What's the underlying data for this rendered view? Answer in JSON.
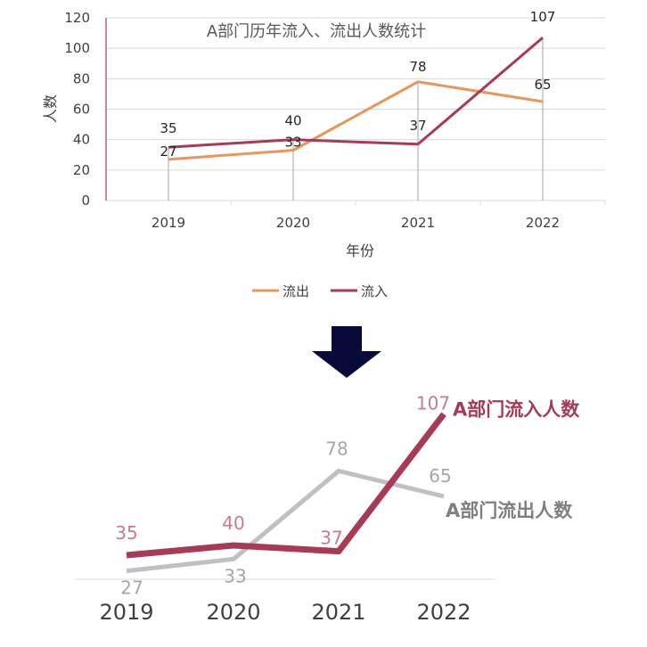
{
  "chart_data": [
    {
      "type": "line",
      "title": "A部门历年流入、流出人数统计",
      "xlabel": "年份",
      "ylabel": "人数",
      "categories": [
        "2019",
        "2020",
        "2021",
        "2022"
      ],
      "ylim": [
        0,
        120
      ],
      "yticks": [
        "0",
        "20",
        "40",
        "60",
        "80",
        "100",
        "120"
      ],
      "grid": true,
      "legend_position": "bottom",
      "series": [
        {
          "name": "流出",
          "values": [
            27,
            33,
            78,
            65
          ],
          "color": "#e8975a"
        },
        {
          "name": "流入",
          "values": [
            35,
            40,
            37,
            107
          ],
          "color": "#a83a55"
        }
      ]
    },
    {
      "type": "line",
      "categories": [
        "2019",
        "2020",
        "2021",
        "2022"
      ],
      "series": [
        {
          "name": "A部门流入人数",
          "values": [
            35,
            40,
            37,
            107
          ],
          "color": "#a83a55",
          "label_color": "#c97b8d"
        },
        {
          "name": "A部门流出人数",
          "values": [
            27,
            33,
            78,
            65
          ],
          "color": "#c0c0c0",
          "label_color": "#a6a6a6"
        }
      ]
    }
  ],
  "arrow_color": "#0a0a3a"
}
